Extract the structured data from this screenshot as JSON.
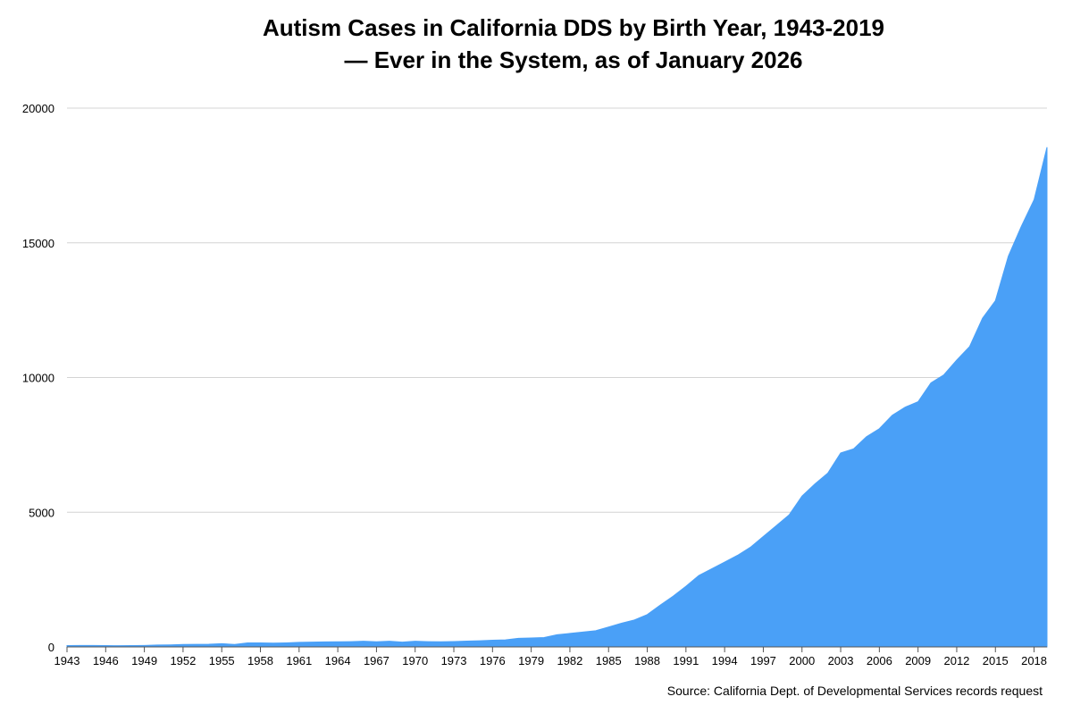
{
  "chart_data": {
    "type": "area",
    "title": [
      "Autism Cases in California DDS by Birth Year, 1943-2019",
      "— Ever in the System, as of January 2026"
    ],
    "xlabel": "",
    "ylabel": "",
    "ylim": [
      0,
      20000
    ],
    "yticks": [
      "0",
      "5000",
      "10000",
      "15000",
      "20000"
    ],
    "xticks": [
      "1943",
      "1946",
      "1949",
      "1952",
      "1955",
      "1958",
      "1961",
      "1964",
      "1967",
      "1970",
      "1973",
      "1976",
      "1979",
      "1982",
      "1985",
      "1988",
      "1991",
      "1994",
      "1997",
      "2000",
      "2003",
      "2006",
      "2009",
      "2012",
      "2015",
      "2018"
    ],
    "grid": true,
    "fill_color": "#4aa0f7",
    "source": "Source: California Dept. of Developmental Services records request",
    "series": [
      {
        "x": [
          1943,
          1944,
          1945,
          1946,
          1947,
          1948,
          1949,
          1950,
          1951,
          1952,
          1953,
          1954,
          1955,
          1956,
          1957,
          1958,
          1959,
          1960,
          1961,
          1962,
          1963,
          1964,
          1965,
          1966,
          1967,
          1968,
          1969,
          1970,
          1971,
          1972,
          1973,
          1974,
          1975,
          1976,
          1977,
          1978,
          1979,
          1980,
          1981,
          1982,
          1983,
          1984,
          1985,
          1986,
          1987,
          1988,
          1989,
          1990,
          1991,
          1992,
          1993,
          1994,
          1995,
          1996,
          1997,
          1998,
          1999,
          2000,
          2001,
          2002,
          2003,
          2004,
          2005,
          2006,
          2007,
          2008,
          2009,
          2010,
          2011,
          2012,
          2013,
          2014,
          2015,
          2016,
          2017,
          2018,
          2019
        ],
        "values": [
          50,
          55,
          55,
          50,
          45,
          50,
          55,
          70,
          75,
          90,
          95,
          100,
          120,
          90,
          150,
          150,
          140,
          150,
          170,
          180,
          185,
          190,
          195,
          210,
          190,
          210,
          180,
          210,
          195,
          190,
          200,
          215,
          230,
          250,
          260,
          320,
          330,
          350,
          450,
          500,
          550,
          600,
          740,
          880,
          1000,
          1200,
          1550,
          1880,
          2250,
          2650,
          2900,
          3150,
          3400,
          3700,
          4100,
          4500,
          4900,
          5600,
          6050,
          6450,
          7200,
          7350,
          7800,
          8100,
          8600,
          8900,
          9100,
          9800,
          10100,
          10650,
          11150,
          12200,
          12850,
          14500,
          15600,
          16600,
          18550
        ]
      }
    ]
  }
}
